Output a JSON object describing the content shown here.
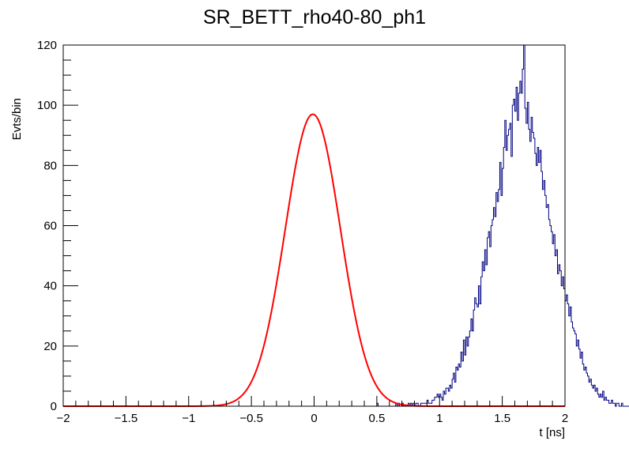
{
  "chart_data": {
    "type": "histogram",
    "title": "SR_BETT_rho40-80_ph1",
    "xlabel": "t [ns]",
    "ylabel": "Evts/bin",
    "xlim": [
      -2,
      2
    ],
    "ylim": [
      0,
      120
    ],
    "x_ticks": [
      -2,
      -1.5,
      -1,
      -0.5,
      0,
      0.5,
      1,
      1.5,
      2
    ],
    "x_tick_labels": [
      "−2",
      "−1.5",
      "−1",
      "−0.5",
      "0",
      "0.5",
      "1",
      "1.5",
      "2"
    ],
    "y_ticks": [
      0,
      20,
      40,
      60,
      80,
      100,
      120
    ],
    "y_tick_labels": [
      "0",
      "20",
      "40",
      "60",
      "80",
      "100",
      "120"
    ],
    "grid": false,
    "legend": "none",
    "colors": {
      "histogram": "#000080",
      "fit": "#ff0000",
      "frame": "#000000"
    },
    "histogram": {
      "name": "",
      "bin_low": -2,
      "bin_width": 0.01,
      "counts": [
        0,
        0,
        0,
        0,
        0,
        0,
        0,
        0,
        0,
        0,
        0,
        0,
        0,
        0,
        0,
        0,
        0,
        0,
        0,
        0,
        0,
        0,
        0,
        0,
        0,
        0,
        0,
        0,
        0,
        0,
        0,
        0,
        0,
        0,
        0,
        0,
        0,
        0,
        0,
        0,
        0,
        0,
        0,
        0,
        0,
        0,
        0,
        0,
        0,
        0,
        0,
        0,
        0,
        0,
        0,
        0,
        0,
        0,
        0,
        0,
        0,
        0,
        0,
        0,
        0,
        0,
        0,
        0,
        0,
        0,
        0,
        0,
        0,
        0,
        0,
        0,
        0,
        0,
        0,
        0,
        0,
        0,
        0,
        0,
        0,
        0,
        0,
        0,
        0,
        0,
        0,
        0,
        0,
        0,
        0,
        0,
        0,
        0,
        0,
        0,
        0,
        0,
        0,
        0,
        0,
        0,
        0,
        0,
        0,
        0,
        0,
        0,
        0,
        0,
        0,
        0,
        0,
        0,
        0,
        0,
        0,
        0,
        0,
        0,
        0,
        0,
        0,
        0,
        0,
        0,
        0,
        0,
        0,
        0,
        0,
        0,
        0,
        0,
        0,
        0,
        0,
        0,
        0,
        0,
        0,
        0,
        0,
        0,
        0,
        0,
        0,
        0,
        0,
        0,
        0,
        0,
        0,
        0,
        0,
        0,
        0,
        0,
        0,
        0,
        0,
        0,
        0,
        0,
        0,
        0,
        0,
        0,
        0,
        0,
        0,
        0,
        0,
        0,
        0,
        0,
        0,
        0,
        0,
        0,
        0,
        0,
        0,
        0,
        0,
        0,
        0,
        0,
        0,
        0,
        0,
        0,
        0,
        0,
        0,
        0,
        0,
        0,
        0,
        0,
        0,
        0,
        0,
        0,
        0,
        0,
        0,
        0,
        0,
        0,
        0,
        0,
        0,
        0,
        0,
        0,
        0,
        0,
        0,
        0,
        0,
        0,
        0,
        0,
        0,
        0,
        0,
        0,
        0,
        0,
        0,
        0,
        0,
        0,
        0,
        0,
        0,
        0,
        0,
        0,
        0,
        0,
        0,
        0,
        0,
        0,
        1,
        0,
        0,
        0,
        0,
        0,
        0,
        0,
        0,
        0,
        0,
        0,
        0,
        0,
        0,
        1,
        0,
        1,
        0,
        0,
        1,
        0,
        0,
        0,
        0,
        1,
        0,
        1,
        0,
        1,
        0,
        1,
        1,
        0,
        0,
        1,
        1,
        1,
        1,
        1,
        2,
        1,
        1,
        1,
        2,
        2,
        3,
        3,
        4,
        3,
        4,
        3,
        2,
        5,
        4,
        6,
        6,
        5,
        7,
        6,
        9,
        11,
        8,
        13,
        12,
        14,
        13,
        18,
        15,
        22,
        17,
        23,
        20,
        23,
        25,
        29,
        25,
        32,
        36,
        34,
        33,
        40,
        34,
        43,
        48,
        45,
        52,
        47,
        56,
        58,
        53,
        60,
        62,
        66,
        63,
        71,
        68,
        72,
        81,
        70,
        79,
        86,
        95,
        85,
        90,
        92,
        94,
        83,
        100,
        102,
        98,
        106,
        95,
        104,
        108,
        104,
        112,
        120,
        99,
        94,
        101,
        92,
        88,
        96,
        91,
        89,
        84,
        80,
        86,
        81,
        85,
        78,
        72,
        75,
        70,
        66,
        67,
        62,
        60,
        58,
        54,
        57,
        50,
        52,
        44,
        47,
        45,
        40,
        43,
        39,
        35,
        37,
        34,
        30,
        33,
        28,
        26,
        25,
        24,
        20,
        22,
        19,
        16,
        18,
        14,
        12,
        13,
        11,
        10,
        8,
        9,
        7,
        6,
        7,
        5,
        6,
        4,
        3,
        4,
        3,
        5,
        2,
        3,
        2,
        2,
        1,
        1,
        2,
        1,
        1,
        0,
        1,
        1,
        0,
        0,
        1,
        0,
        0,
        0,
        0,
        0,
        0,
        0,
        0,
        0,
        0,
        0,
        0,
        0,
        0,
        0,
        0,
        0,
        0,
        0,
        0,
        0,
        0,
        0,
        0,
        0,
        0,
        0,
        0,
        0,
        0,
        0,
        0,
        0,
        0,
        0,
        0,
        0,
        0,
        0,
        0,
        0,
        0,
        0,
        0,
        0,
        0,
        0,
        0,
        0,
        0,
        0,
        0,
        0,
        0,
        0,
        0,
        0,
        0,
        0,
        0,
        0,
        0,
        0,
        0,
        0,
        0,
        0,
        0,
        0,
        0,
        0,
        0,
        0,
        0,
        0,
        0,
        0,
        0,
        0,
        0,
        0,
        0,
        0,
        0,
        0,
        0,
        0,
        0,
        0,
        0,
        0,
        0,
        0,
        0,
        0,
        0,
        0,
        0,
        0,
        0,
        0,
        0,
        0,
        0,
        0,
        0,
        0,
        0,
        0,
        0,
        0,
        0,
        0,
        0,
        0,
        0,
        0,
        0,
        0,
        0,
        0,
        0,
        0,
        0,
        0,
        0,
        0,
        0,
        0,
        0,
        0,
        0,
        0,
        0,
        0,
        0,
        0,
        0,
        0,
        0,
        0,
        0,
        0,
        0,
        0,
        0,
        0,
        0,
        0,
        0,
        0,
        0,
        0,
        0,
        0,
        0,
        0,
        0,
        0,
        0,
        0,
        0,
        0,
        0,
        0,
        0,
        0,
        0,
        0,
        0,
        0,
        0,
        0,
        0,
        0,
        0,
        0,
        0,
        0,
        0,
        0,
        0,
        0,
        0,
        0,
        0,
        0,
        0,
        0,
        0,
        0,
        0,
        0,
        0,
        0,
        0
      ]
    },
    "fit": {
      "name": "",
      "type": "gaussian",
      "amplitude": 97,
      "mean": -0.01,
      "sigma": 0.22,
      "x_range": [
        -2,
        2
      ]
    }
  }
}
